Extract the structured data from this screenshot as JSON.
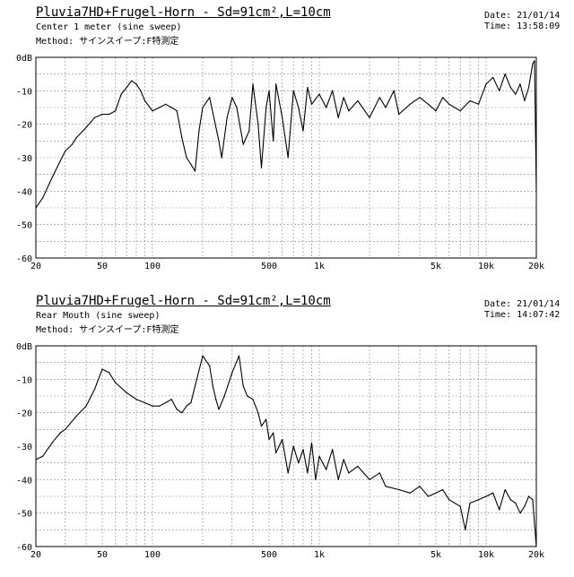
{
  "chart_data": [
    {
      "type": "line",
      "title": "Pluvia7HD+Frugel-Horn - Sd=91cm²,L=10cm",
      "subtitle": "Center 1 meter (sine sweep)",
      "method": "Method: サインスイープ:F特測定",
      "date": "Date: 21/01/14",
      "time": "Time: 13:58:09",
      "xscale": "log",
      "xlim": [
        20,
        20000
      ],
      "ylim": [
        -60,
        0
      ],
      "grid": true,
      "x_ticks": [
        "20",
        "50",
        "100",
        "500",
        "1k",
        "5k",
        "10k",
        "20k"
      ],
      "y_ticks": [
        "0dB",
        "-10",
        "-20",
        "-30",
        "-40",
        "-50",
        "-60"
      ],
      "series": [
        {
          "x": [
            20,
            22,
            25,
            28,
            30,
            33,
            35,
            40,
            45,
            50,
            55,
            60,
            65,
            70,
            75,
            80,
            85,
            90,
            100,
            110,
            120,
            130,
            140,
            150,
            160,
            170,
            180,
            190,
            200,
            220,
            250,
            260,
            280,
            300,
            320,
            350,
            380,
            400,
            430,
            450,
            480,
            500,
            530,
            550,
            600,
            650,
            700,
            750,
            800,
            850,
            900,
            1000,
            1100,
            1200,
            1300,
            1400,
            1500,
            1700,
            2000,
            2300,
            2500,
            2800,
            3000,
            3500,
            4000,
            4500,
            5000,
            5500,
            6000,
            7000,
            8000,
            9000,
            10000,
            11000,
            12000,
            13000,
            14000,
            15000,
            16000,
            17000,
            18000,
            19000,
            19500,
            20000
          ],
          "y": [
            -45,
            -42,
            -36,
            -31,
            -28,
            -26,
            -24,
            -21,
            -18,
            -17,
            -17,
            -16,
            -11,
            -9,
            -7,
            -8,
            -10,
            -13,
            -16,
            -15,
            -14,
            -15,
            -16,
            -24,
            -30,
            -32,
            -34,
            -22,
            -15,
            -12,
            -25,
            -30,
            -18,
            -12,
            -15,
            -26,
            -22,
            -8,
            -20,
            -33,
            -15,
            -10,
            -25,
            -8,
            -18,
            -30,
            -10,
            -15,
            -22,
            -9,
            -14,
            -11,
            -15,
            -10,
            -18,
            -12,
            -16,
            -13,
            -18,
            -12,
            -15,
            -10,
            -17,
            -14,
            -12,
            -14,
            -16,
            -12,
            -14,
            -16,
            -13,
            -14,
            -8,
            -6,
            -10,
            -5,
            -9,
            -11,
            -8,
            -13,
            -9,
            -2,
            -1,
            -40
          ]
        }
      ]
    },
    {
      "type": "line",
      "title": "Pluvia7HD+Frugel-Horn - Sd=91cm²,L=10cm",
      "subtitle": "Rear Mouth (sine sweep)",
      "method": "Method: サインスイープ:F特測定",
      "date": "Date: 21/01/14",
      "time": "Time: 14:07:42",
      "xscale": "log",
      "xlim": [
        20,
        20000
      ],
      "ylim": [
        -60,
        0
      ],
      "grid": true,
      "x_ticks": [
        "20",
        "50",
        "100",
        "500",
        "1k",
        "5k",
        "10k",
        "20k"
      ],
      "y_ticks": [
        "0dB",
        "-10",
        "-20",
        "-30",
        "-40",
        "-50",
        "-60"
      ],
      "series": [
        {
          "x": [
            20,
            22,
            25,
            28,
            30,
            35,
            40,
            45,
            50,
            55,
            60,
            70,
            80,
            90,
            100,
            110,
            120,
            130,
            140,
            150,
            160,
            170,
            180,
            200,
            220,
            230,
            240,
            250,
            270,
            300,
            330,
            350,
            370,
            400,
            430,
            450,
            480,
            500,
            530,
            550,
            600,
            650,
            700,
            750,
            800,
            850,
            900,
            950,
            1000,
            1100,
            1200,
            1300,
            1400,
            1500,
            1700,
            2000,
            2300,
            2500,
            3000,
            3500,
            4000,
            4500,
            5000,
            5500,
            6000,
            7000,
            7500,
            8000,
            9000,
            10000,
            11000,
            12000,
            13000,
            14000,
            15000,
            16000,
            17000,
            18000,
            19000,
            20000
          ],
          "y": [
            -34,
            -33,
            -29,
            -26,
            -25,
            -21,
            -18,
            -13,
            -7,
            -8,
            -11,
            -14,
            -16,
            -17,
            -18,
            -18,
            -17,
            -16,
            -19,
            -20,
            -18,
            -17,
            -12,
            -3,
            -6,
            -12,
            -16,
            -19,
            -15,
            -8,
            -3,
            -12,
            -15,
            -16,
            -20,
            -24,
            -22,
            -28,
            -26,
            -32,
            -28,
            -38,
            -30,
            -35,
            -31,
            -38,
            -29,
            -40,
            -33,
            -37,
            -31,
            -40,
            -34,
            -38,
            -36,
            -40,
            -38,
            -42,
            -43,
            -44,
            -42,
            -45,
            -44,
            -43,
            -46,
            -48,
            -55,
            -47,
            -46,
            -45,
            -44,
            -49,
            -43,
            -46,
            -47,
            -50,
            -48,
            -45,
            -46,
            -60
          ]
        }
      ]
    }
  ]
}
